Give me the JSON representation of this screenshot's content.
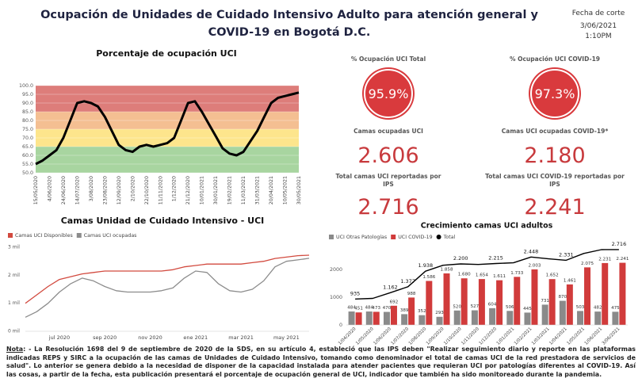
{
  "header": {
    "title": "Ocupación de Unidades de Cuidado Intensivo Adulto para atención general y COVID-19 en Bogotá D.C.",
    "cutoff_label": "Fecha de corte",
    "cutoff_date": "3/06/2021",
    "cutoff_time": "1:10PM"
  },
  "indicators": [
    {
      "label": "% Ocupación UCI Total",
      "value": "95.9%"
    },
    {
      "label": "Camas ocupadas UCI",
      "value": "2.606"
    },
    {
      "label": "Total camas UCI reportadas por IPS",
      "value": "2.716"
    },
    {
      "label": "% Ocupación UCI COVID-19",
      "value": "97.3%"
    },
    {
      "label": "Camas UCI ocupadas COVID-19*",
      "value": "2.180"
    },
    {
      "label": "Total camas UCI COVID-19 reportadas por IPS",
      "value": "2.241"
    }
  ],
  "chart_data": [
    {
      "type": "line",
      "title": "Porcentaje de ocupación UCI",
      "categories": [
        "15/05/2020",
        null,
        "4/06/2020",
        null,
        "24/06/2020",
        null,
        "14/07/2020",
        null,
        "3/08/2020",
        null,
        "23/08/2020",
        null,
        "12/09/2020",
        null,
        "2/10/2020",
        null,
        "22/10/2020",
        null,
        "11/11/2020",
        null,
        "1/12/2020",
        null,
        "21/12/2020",
        null,
        "10/01/2021",
        null,
        "30/01/2021",
        null,
        "19/02/2021",
        null,
        "11/03/2021",
        null,
        "31/03/2021",
        null,
        "20/04/2021",
        null,
        "10/05/2021",
        null,
        "30/05/2021"
      ],
      "series": [
        {
          "name": "Porcentaje de ocupación UCI",
          "color": "#000000",
          "values": [
            55,
            57,
            60,
            63,
            70,
            80,
            90,
            91,
            90,
            88,
            82,
            74,
            66,
            63,
            62,
            65,
            66,
            65,
            66,
            67,
            70,
            80,
            90,
            91,
            85,
            78,
            71,
            64,
            61,
            60,
            62,
            68,
            74,
            82,
            90,
            93,
            94,
            95,
            96
          ]
        }
      ],
      "bands": [
        {
          "from": 50,
          "to": 65,
          "color": "#a8d5a0"
        },
        {
          "from": 65,
          "to": 75,
          "color": "#fde58c"
        },
        {
          "from": 75,
          "to": 85,
          "color": "#f4bf92"
        },
        {
          "from": 85,
          "to": 100,
          "color": "#dd7d7a"
        }
      ],
      "ylim": [
        50,
        100
      ],
      "yticks": [
        {
          "value": 50,
          "label": "50.0"
        },
        {
          "value": 55,
          "label": "55.0"
        },
        {
          "value": 60,
          "label": "60.0"
        },
        {
          "value": 65,
          "label": "65.0"
        },
        {
          "value": 70,
          "label": "70.0"
        },
        {
          "value": 75,
          "label": "75.0"
        },
        {
          "value": 80,
          "label": "80.0"
        },
        {
          "value": 85,
          "label": "85.0"
        },
        {
          "value": 90,
          "label": "90.0"
        },
        {
          "value": 95,
          "label": "95.0"
        },
        {
          "value": 100,
          "label": "100.0"
        }
      ],
      "grid": true,
      "legend": "none"
    },
    {
      "type": "line",
      "title": "Camas Unidad de Cuidado Intensivo - UCI",
      "categories": [
        null,
        null,
        null,
        "jul 2020",
        null,
        null,
        null,
        "sep 2020",
        null,
        null,
        null,
        "nov 2020",
        null,
        null,
        null,
        "ene 2021",
        null,
        null,
        null,
        "mar 2021",
        null,
        null,
        null,
        "may 2021",
        null,
        null
      ],
      "series": [
        {
          "name": "Camas UCI Disponibles",
          "color": "#d24a3f",
          "values": [
            1000,
            1300,
            1600,
            1850,
            1950,
            2050,
            2100,
            2150,
            2150,
            2150,
            2150,
            2150,
            2150,
            2200,
            2300,
            2350,
            2400,
            2400,
            2400,
            2400,
            2450,
            2500,
            2600,
            2650,
            2700,
            2716
          ]
        },
        {
          "name": "Camas UCI ocupadas",
          "color": "#8c8c8c",
          "values": [
            500,
            700,
            1000,
            1400,
            1700,
            1900,
            1800,
            1600,
            1450,
            1400,
            1400,
            1400,
            1450,
            1550,
            1900,
            2150,
            2100,
            1700,
            1450,
            1400,
            1500,
            1800,
            2300,
            2500,
            2550,
            2606
          ]
        }
      ],
      "ylim": [
        0,
        3000
      ],
      "yticks": [
        {
          "value": 0,
          "label": "0 mil"
        },
        {
          "value": 1000,
          "label": "1 mil"
        },
        {
          "value": 2000,
          "label": "2 mil"
        },
        {
          "value": 3000,
          "label": "3 mil"
        }
      ],
      "grid": false,
      "legend": "top-left"
    },
    {
      "type": "bar",
      "title": "Crecimiento camas UCI adultos",
      "categories": [
        "1/04/2020",
        "1/05/2020",
        "1/06/2020",
        "1/07/2020",
        "1/08/2020",
        "1/09/2020",
        "1/10/2020",
        "1/11/2020",
        "1/12/2020",
        "1/01/2021",
        "1/02/2021",
        "1/03/2021",
        "1/04/2021",
        "1/05/2021",
        "1/06/2021",
        "3/06/2021"
      ],
      "series": [
        {
          "name": "UCI Otras Patologías",
          "color": "#8a8a8a",
          "values": [
            484,
            484,
            470,
            389,
            352,
            293,
            520,
            527,
            604,
            506,
            445,
            731,
            870,
            503,
            482,
            475
          ]
        },
        {
          "name": "UCI COVID-19",
          "color": "#d13b3b",
          "values": [
            451,
            473,
            692,
            988,
            1586,
            1858,
            1680,
            1654,
            1611,
            1733,
            2003,
            1652,
            1461,
            2075,
            2231,
            2241
          ],
          "value_labels": [
            "451",
            "473",
            "692",
            "988",
            "1.586",
            "1.858",
            "1.680",
            "1.654",
            "1.611",
            "1.733",
            "2.003",
            "1.652",
            "1.461",
            "2.075",
            "2.231",
            "2.241"
          ]
        },
        {
          "name": "Total",
          "color": "#000000",
          "type": "line",
          "values": [
            935,
            957,
            1162,
            1377,
            1938,
            2151,
            2200,
            2181,
            2215,
            2239,
            2448,
            2383,
            2331,
            2578,
            2713,
            2716
          ],
          "value_labels": [
            "935",
            null,
            "1.162",
            "1.377",
            "1.938",
            null,
            "2.200",
            null,
            "2.215",
            null,
            "2.448",
            null,
            "2.331",
            null,
            null,
            "2.716"
          ]
        }
      ],
      "ylim": [
        0,
        3000
      ],
      "yticks": [
        0,
        1000,
        2000
      ],
      "grid": false,
      "legend": "top-left"
    }
  ],
  "note": {
    "label": "Nota",
    "text": ": - La Resolución 1698 del 9 de septiembre de 2020 de la SDS, en su artículo 4, estableció que las IPS deben \"Realizar seguimiento diario y reporte en las plataformas indicadas REPS y SIRC a la ocupación de las camas de Unidades de Cuidado Intensivo, tomando como denominador el total de camas UCI de la red prestadora de servicios de salud\". Lo anterior se genera debido a la necesidad de disponer de la capacidad instalada para atender pacientes que requieran UCI por patologías diferentes al COVID-19. Así las cosas, a partir de la fecha, esta publicación presentará el porcentaje de ocupación general de UCI, indicador que también ha sido monitoreado durante la pandemia."
  }
}
